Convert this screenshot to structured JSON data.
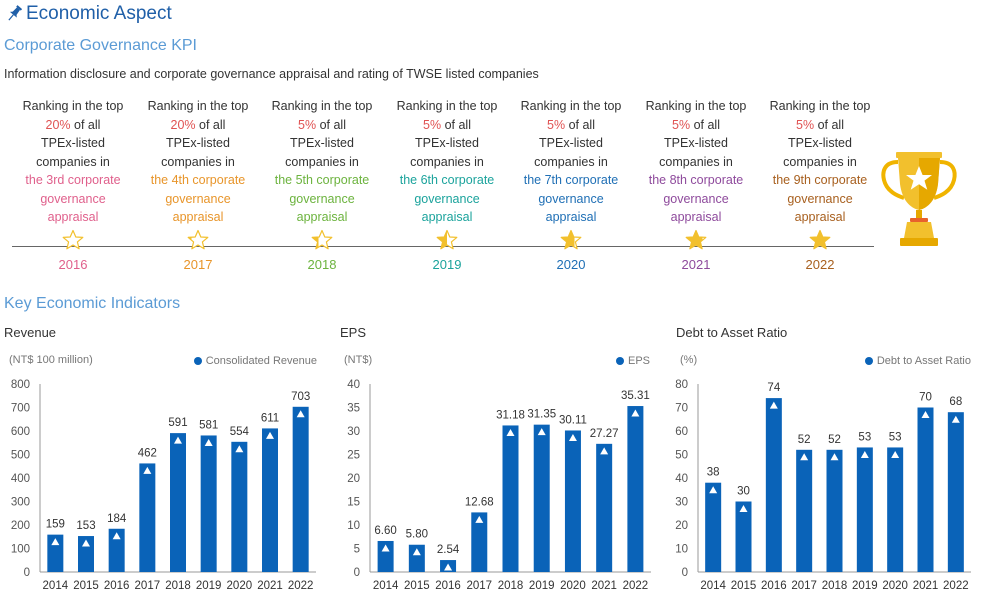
{
  "page_title": "Economic Aspect",
  "section_kpi_title": "Corporate Governance KPI",
  "kpi_description": "Information disclosure and corporate governance appraisal and rating of TWSE listed companies",
  "kpi_items": [
    {
      "year": "2016",
      "line1": "Ranking in the top",
      "pct": "20%",
      "pct_suffix": " of all",
      "line3": "TPEx-listed",
      "line4": "companies in",
      "line5": "the 3rd corporate",
      "line6": "governance",
      "line7": "appraisal",
      "color": "#e0608c"
    },
    {
      "year": "2017",
      "line1": "Ranking in the top",
      "pct": "20%",
      "pct_suffix": " of all",
      "line3": "TPEx-listed",
      "line4": "companies in",
      "line5": "the 4th corporate",
      "line6": "governance",
      "line7": "appraisal",
      "color": "#e8952a"
    },
    {
      "year": "2018",
      "line1": "Ranking in the top",
      "pct": "5%",
      "pct_suffix": " of all",
      "line3": "TPEx-listed",
      "line4": "companies in",
      "line5": "the 5th corporate",
      "line6": "governance",
      "line7": "appraisal",
      "color": "#6cb33e"
    },
    {
      "year": "2019",
      "line1": "Ranking in the top",
      "pct": "5%",
      "pct_suffix": " of all",
      "line3": "TPEx-listed",
      "line4": "companies in",
      "line5": "the 6th corporate",
      "line6": "governance",
      "line7": "appraisal",
      "color": "#1ba39c"
    },
    {
      "year": "2020",
      "line1": "Ranking in the top",
      "pct": "5%",
      "pct_suffix": " of all",
      "line3": "TPEx-listed",
      "line4": "companies in",
      "line5": "the 7th corporate",
      "line6": "governance",
      "line7": "appraisal",
      "color": "#1f6fb5"
    },
    {
      "year": "2021",
      "line1": "Ranking in the top",
      "pct": "5%",
      "pct_suffix": " of all",
      "line3": "TPEx-listed",
      "line4": "companies in",
      "line5": "the 8th corporate",
      "line6": "governance",
      "line7": "appraisal",
      "color": "#8e4a9c"
    },
    {
      "year": "2022",
      "line1": "Ranking in the top",
      "pct": "5%",
      "pct_suffix": " of all",
      "line3": "TPEx-listed",
      "line4": "companies in",
      "line5": "the 9th corporate",
      "line6": "governance",
      "line7": "appraisal",
      "color": "#a8601f"
    }
  ],
  "section_econ_title": "Key Economic Indicators",
  "colors": {
    "bar": "#0a63b8",
    "star": "#f2c02d",
    "title": "#1f5fa8",
    "subtitle": "#5b9bd5"
  },
  "chart_data": [
    {
      "type": "bar",
      "title": "Revenue",
      "unit": "(NT$ 100 million)",
      "legend": "Consolidated Revenue",
      "categories": [
        "2014",
        "2015",
        "2016",
        "2017",
        "2018",
        "2019",
        "2020",
        "2021",
        "2022"
      ],
      "series": [
        {
          "name": "Consolidated Revenue",
          "values": [
            159,
            153,
            184,
            462,
            591,
            581,
            554,
            611,
            703
          ]
        }
      ],
      "labels": [
        "159",
        "153",
        "184",
        "462",
        "591",
        "581",
        "554",
        "611",
        "703"
      ],
      "ylim": [
        0,
        800
      ],
      "yticks": [
        0,
        100,
        200,
        300,
        400,
        500,
        600,
        700,
        800
      ]
    },
    {
      "type": "bar",
      "title": "EPS",
      "unit": "(NT$)",
      "legend": "EPS",
      "categories": [
        "2014",
        "2015",
        "2016",
        "2017",
        "2018",
        "2019",
        "2020",
        "2021",
        "2022"
      ],
      "series": [
        {
          "name": "EPS",
          "values": [
            6.6,
            5.8,
            2.54,
            12.68,
            31.18,
            31.35,
            30.11,
            27.27,
            35.31
          ]
        }
      ],
      "labels": [
        "6.60",
        "5.80",
        "2.54",
        "12.68",
        "31.18",
        "31.35",
        "30.11",
        "27.27",
        "35.31"
      ],
      "ylim": [
        0,
        40
      ],
      "yticks": [
        0,
        5,
        10,
        15,
        20,
        25,
        30,
        35,
        40
      ]
    },
    {
      "type": "bar",
      "title": "Debt to Asset Ratio",
      "unit": "(%)",
      "legend": "Debt to Asset Ratio",
      "categories": [
        "2014",
        "2015",
        "2016",
        "2017",
        "2018",
        "2019",
        "2020",
        "2021",
        "2022"
      ],
      "series": [
        {
          "name": "Debt to Asset Ratio",
          "values": [
            38,
            30,
            74,
            52,
            52,
            53,
            53,
            70,
            68
          ]
        }
      ],
      "labels": [
        "38",
        "30",
        "74",
        "52",
        "52",
        "53",
        "53",
        "70",
        "68"
      ],
      "ylim": [
        0,
        80
      ],
      "yticks": [
        0,
        10,
        20,
        30,
        40,
        50,
        60,
        70,
        80
      ]
    }
  ]
}
